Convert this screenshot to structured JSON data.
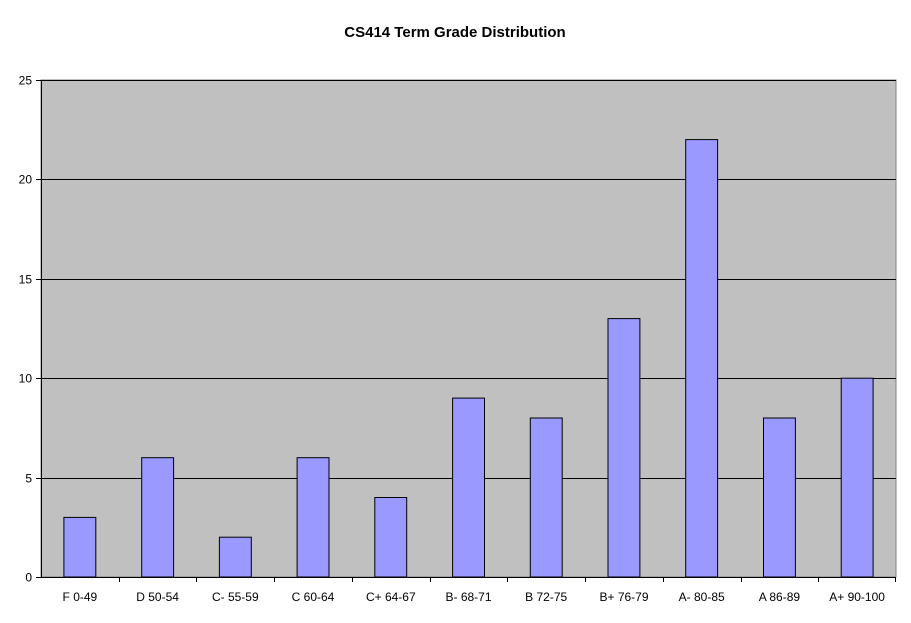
{
  "chart_data": {
    "type": "bar",
    "title": "CS414 Term Grade Distribution",
    "xlabel": "",
    "ylabel": "",
    "categories": [
      "F 0-49",
      "D 50-54",
      "C- 55-59",
      "C 60-64",
      "C+ 64-67",
      "B- 68-71",
      "B 72-75",
      "B+ 76-79",
      "A- 80-85",
      "A 86-89",
      "A+ 90-100"
    ],
    "values": [
      3,
      6,
      2,
      6,
      4,
      9,
      8,
      13,
      22,
      8,
      10
    ],
    "ylim": [
      0,
      25
    ],
    "yticks": [
      0,
      5,
      10,
      15,
      20,
      25
    ],
    "grid": true,
    "legend": "none",
    "colors": {
      "bar_fill": "#9999ff",
      "bar_stroke": "#000000",
      "plot_background": "#c0c0c0",
      "gridline": "#000000"
    }
  }
}
